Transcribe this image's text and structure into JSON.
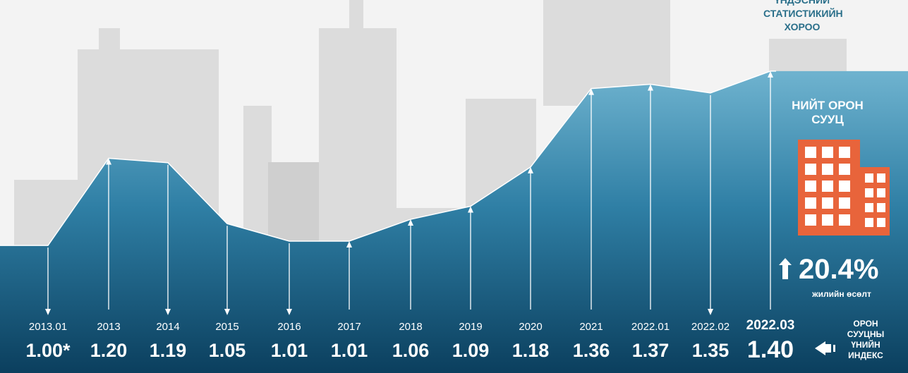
{
  "agency": [
    "ҮНДЭСНИЙ",
    "СТАТИСТИКИЙН",
    "ХОРОО"
  ],
  "total_title": [
    "НИЙТ ОРОН",
    "СУУЦ"
  ],
  "growth": {
    "value": "20.4%",
    "caption": "жилийн өсөлт"
  },
  "index_label": [
    "ОРОН",
    "СУУЦНЫ",
    "ҮНИЙН",
    "ИНДЕКС"
  ],
  "colors": {
    "area_top": "#5fa9c8",
    "area_bottom": "#0b3f5e",
    "building": "#e8643b",
    "agency_text": "#2a6f8a"
  },
  "chart_data": {
    "type": "area",
    "categories": [
      "2013.01",
      "2013",
      "2014",
      "2015",
      "2016",
      "2017",
      "2018",
      "2019",
      "2020",
      "2021",
      "2022.01",
      "2022.02",
      "2022.03"
    ],
    "values": [
      1.0,
      1.2,
      1.19,
      1.05,
      1.01,
      1.01,
      1.06,
      1.09,
      1.18,
      1.36,
      1.37,
      1.35,
      1.4
    ],
    "value_labels": [
      "1.00*",
      "1.20",
      "1.19",
      "1.05",
      "1.01",
      "1.01",
      "1.06",
      "1.09",
      "1.18",
      "1.36",
      "1.37",
      "1.35",
      "1.40"
    ],
    "directions": [
      "down",
      "up",
      "down",
      "down",
      "down",
      "up",
      "up",
      "up",
      "up",
      "up",
      "up",
      "down",
      "up"
    ],
    "title": "",
    "xlabel": "",
    "ylabel": "",
    "ylim": [
      0.96,
      1.42
    ],
    "grid": false,
    "legend": "none"
  }
}
